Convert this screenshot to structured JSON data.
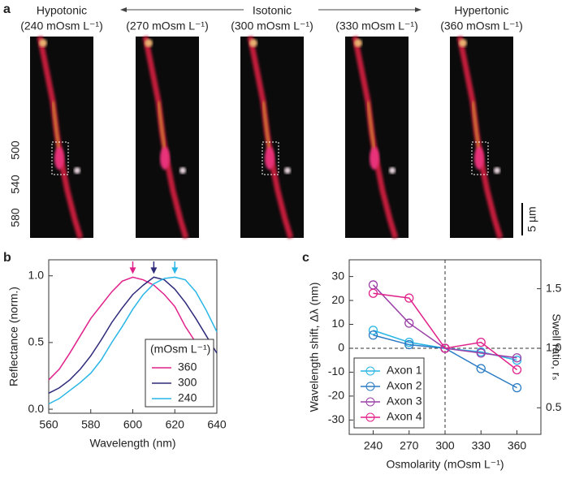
{
  "panel_a": {
    "label": "a",
    "images": [
      {
        "title": "Hypotonic",
        "subtitle": "(240 mOsm L⁻¹)"
      },
      {
        "subtitle": "(270 mOsm L⁻¹)"
      },
      {
        "title": "Isotonic",
        "subtitle": "(300 mOsm L⁻¹)"
      },
      {
        "subtitle": "(330 mOsm L⁻¹)"
      },
      {
        "title": "Hypertonic",
        "subtitle": "(360 mOsm L⁻¹)"
      }
    ],
    "channels": [
      {
        "text": "500",
        "color": "#1f77c4"
      },
      {
        "text": "540",
        "color": "#1aa34a"
      },
      {
        "text": "580",
        "color": "#e02a2a"
      }
    ],
    "scale_bar": "5 µm"
  },
  "chart_data": [
    {
      "type": "line",
      "panel_label": "b",
      "xlabel": "Wavelength (nm)",
      "ylabel": "Reflectance (norm.)",
      "x": [
        560,
        565,
        570,
        575,
        580,
        585,
        590,
        595,
        600,
        605,
        610,
        615,
        620,
        625,
        630,
        635,
        640
      ],
      "xlim": [
        560,
        640
      ],
      "xticks": [
        560,
        580,
        600,
        620,
        640
      ],
      "ylim": [
        -0.03,
        1.12
      ],
      "yticks": [
        {
          "value": 0,
          "label": "0.0"
        },
        {
          "value": 0.5,
          "label": "0.5"
        },
        {
          "value": 1,
          "label": "1.0"
        }
      ],
      "legend": "lower right",
      "legend_title": "(mOsm L⁻¹)",
      "peak_arrows": true,
      "series": [
        {
          "name": "360",
          "color": "#e0218a",
          "values": [
            0.22,
            0.3,
            0.42,
            0.55,
            0.68,
            0.78,
            0.88,
            0.96,
            0.99,
            0.97,
            0.93,
            0.86,
            0.77,
            0.62,
            0.5,
            0.38,
            null
          ]
        },
        {
          "name": "300",
          "color": "#2e2a7a",
          "values": [
            0.12,
            0.16,
            0.22,
            0.3,
            0.4,
            0.52,
            0.65,
            0.76,
            0.86,
            0.93,
            0.99,
            0.97,
            0.9,
            0.8,
            0.68,
            0.55,
            0.42
          ]
        },
        {
          "name": "240",
          "color": "#29b6e6",
          "values": [
            0.04,
            0.08,
            0.14,
            0.2,
            0.27,
            0.37,
            0.5,
            0.62,
            0.75,
            0.86,
            0.94,
            0.98,
            0.99,
            0.97,
            0.88,
            0.74,
            0.58
          ]
        }
      ]
    },
    {
      "type": "line",
      "panel_label": "c",
      "marker": "circle",
      "xlabel": "Osmolarity (mOsm L⁻¹)",
      "ylabel": "Wavelength shift, Δλ (nm)",
      "y2label": "Swell ratio, rₛ",
      "x": [
        240,
        270,
        300,
        330,
        360
      ],
      "xlim": [
        220,
        380
      ],
      "xticks": [
        240,
        270,
        300,
        330,
        360
      ],
      "ylim": [
        -36,
        37
      ],
      "yticks": [
        -30,
        -20,
        -10,
        0,
        10,
        20,
        30
      ],
      "y2lim": [
        0.277,
        1.743
      ],
      "y2ticks": [
        {
          "value": 0.5,
          "label": "0.5"
        },
        {
          "value": 1,
          "label": "1.0"
        },
        {
          "value": 1.5,
          "label": "1.5"
        }
      ],
      "reference_lines": {
        "x": 300,
        "y": 0
      },
      "legend": "lower left",
      "series": [
        {
          "name": "Axon 1",
          "color": "#29b6e6",
          "values": [
            7.5,
            2.5,
            0,
            -1.5,
            -5
          ]
        },
        {
          "name": "Axon 2",
          "color": "#2a7bc4",
          "values": [
            5.5,
            1.5,
            0,
            -8.5,
            -16.5
          ]
        },
        {
          "name": "Axon 3",
          "color": "#9b3fa8",
          "values": [
            26.5,
            10.5,
            0,
            -2,
            -4
          ]
        },
        {
          "name": "Axon 4",
          "color": "#e0218a",
          "values": [
            23,
            21,
            0,
            2.5,
            -9
          ]
        }
      ]
    }
  ]
}
